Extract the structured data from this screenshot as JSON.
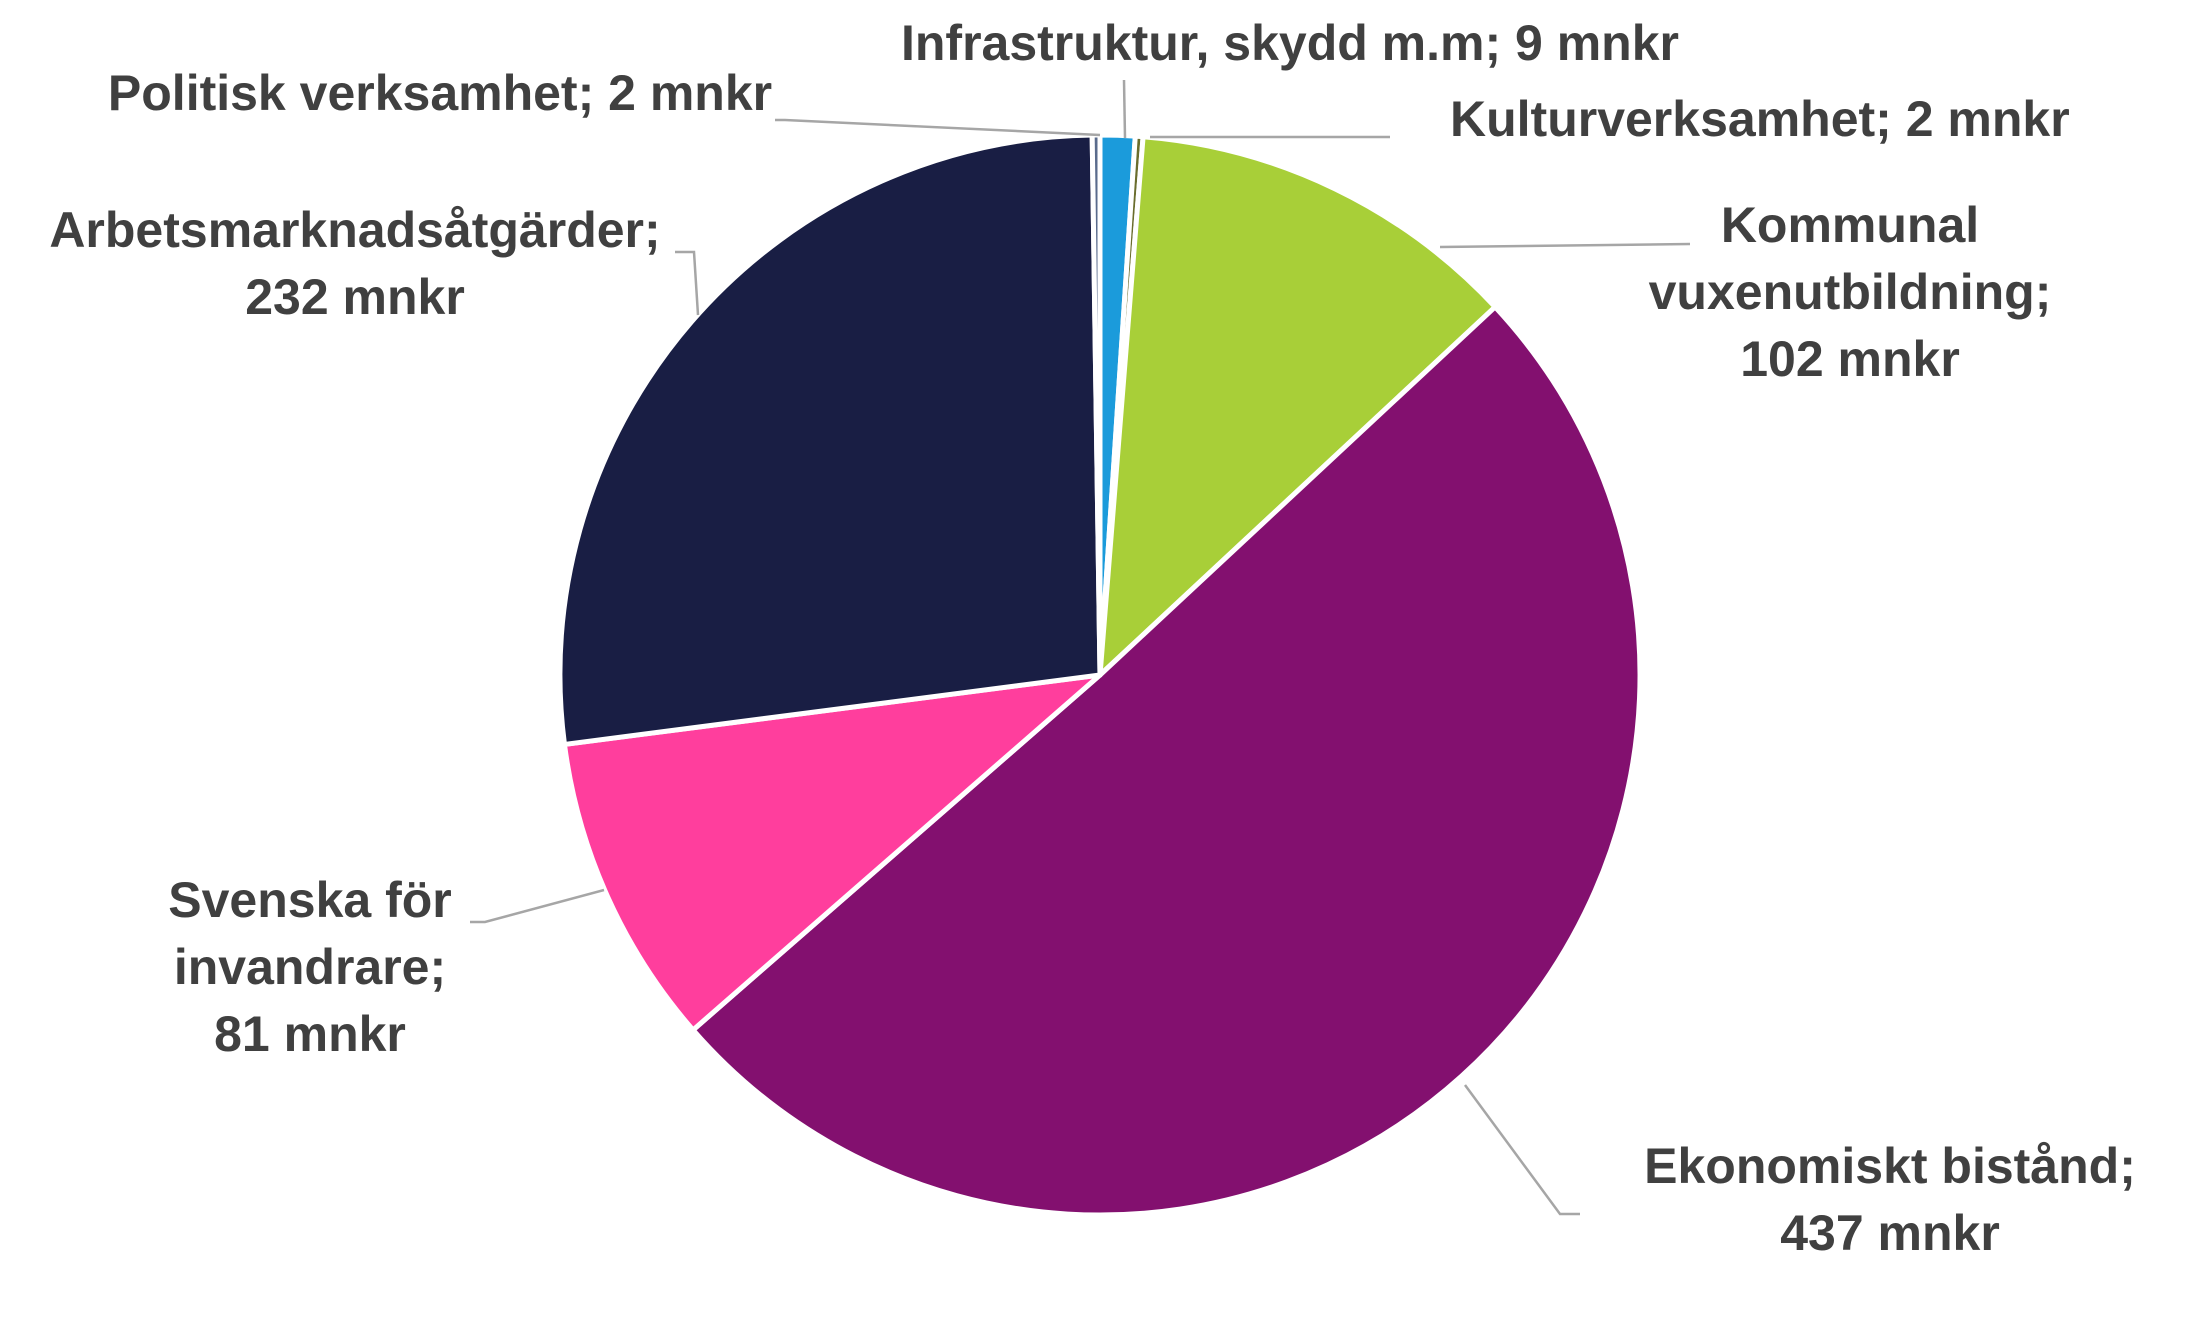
{
  "chart_data": {
    "type": "pie",
    "unit": "mnkr",
    "start_angle_deg": 0,
    "direction": "clockwise",
    "slices": [
      {
        "name": "Infrastruktur, skydd m.m",
        "value": 9,
        "color": "#1b9bdb",
        "label_lines": [
          "Infrastruktur, skydd m.m; 9 mnkr"
        ]
      },
      {
        "name": "Kulturverksamhet",
        "value": 2,
        "color": "#6a6d2d",
        "label_lines": [
          "Kulturverksamhet; 2 mnkr"
        ]
      },
      {
        "name": "Kommunal vuxenutbildning",
        "value": 102,
        "color": "#a8cf38",
        "label_lines": [
          "Kommunal",
          "vuxenutbildning;",
          "102 mnkr"
        ]
      },
      {
        "name": "Ekonomiskt bistånd",
        "value": 437,
        "color": "#83106f",
        "label_lines": [
          "Ekonomiskt bistånd;",
          "437 mnkr"
        ]
      },
      {
        "name": "Svenska för invandrare",
        "value": 81,
        "color": "#ff3e9d",
        "label_lines": [
          "Svenska för",
          "invandrare;",
          "81 mnkr"
        ]
      },
      {
        "name": "Arbetsmarknadsåtgärder",
        "value": 232,
        "color": "#191e44",
        "label_lines": [
          "Arbetsmarknadsåtgärder;",
          "232 mnkr"
        ]
      },
      {
        "name": "Politisk verksamhet",
        "value": 2,
        "color": "#5a6b8c",
        "label_lines": [
          "Politisk verksamhet; 2 mnkr"
        ]
      }
    ]
  }
}
